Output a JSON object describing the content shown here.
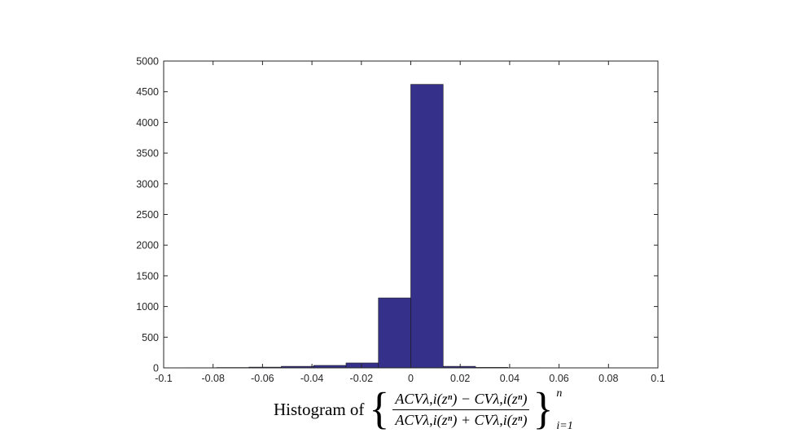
{
  "chart_data": {
    "type": "bar",
    "title": "",
    "xlabel": "",
    "ylabel": "",
    "xlim": [
      -0.1,
      0.1
    ],
    "ylim": [
      0,
      5000
    ],
    "grid": false,
    "bar_color": "#35308a",
    "bins": [
      {
        "x0": -0.0917,
        "x1": -0.0786,
        "value": 3
      },
      {
        "x0": -0.0786,
        "x1": -0.0655,
        "value": 6
      },
      {
        "x0": -0.0655,
        "x1": -0.0524,
        "value": 12
      },
      {
        "x0": -0.0524,
        "x1": -0.0393,
        "value": 25
      },
      {
        "x0": -0.0393,
        "x1": -0.0262,
        "value": 40
      },
      {
        "x0": -0.0262,
        "x1": -0.0131,
        "value": 80
      },
      {
        "x0": -0.0131,
        "x1": 0.0,
        "value": 1140
      },
      {
        "x0": 0.0,
        "x1": 0.0131,
        "value": 4620
      },
      {
        "x0": 0.0131,
        "x1": 0.0262,
        "value": 25
      },
      {
        "x0": 0.0262,
        "x1": 0.0393,
        "value": 8
      },
      {
        "x0": 0.0393,
        "x1": 0.0524,
        "value": 3
      }
    ],
    "x_ticks": [
      -0.1,
      -0.08,
      -0.06,
      -0.04,
      -0.02,
      0,
      0.02,
      0.04,
      0.06,
      0.08,
      0.1
    ],
    "x_tick_labels": [
      "-0.1",
      "-0.08",
      "-0.06",
      "-0.04",
      "-0.02",
      "0",
      "0.02",
      "0.04",
      "0.06",
      "0.08",
      "0.1"
    ],
    "y_ticks": [
      0,
      500,
      1000,
      1500,
      2000,
      2500,
      3000,
      3500,
      4000,
      4500,
      5000
    ],
    "y_tick_labels": [
      "0",
      "500",
      "1000",
      "1500",
      "2000",
      "2500",
      "3000",
      "3500",
      "4000",
      "4500",
      "5000"
    ]
  },
  "caption": {
    "prefix": "Histogram of",
    "numerator": "ACVλ,i(zⁿ) − CVλ,i(zⁿ)",
    "denominator": "ACVλ,i(zⁿ) + CVλ,i(zⁿ)",
    "superscript": "n",
    "subscript": "i=1"
  }
}
